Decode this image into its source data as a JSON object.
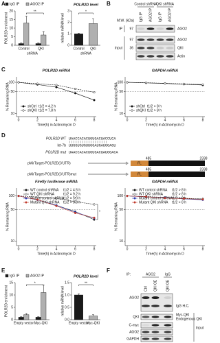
{
  "panel_labels": [
    "A",
    "B",
    "C",
    "D",
    "E",
    "F"
  ],
  "chart_data": [
    {
      "type": "bar",
      "ylabel": "POLR2D enrichment",
      "xlabel": "shRNA",
      "categories": [
        "Control",
        "QKI"
      ],
      "series": [
        {
          "name": "IgG IP",
          "color": "#1a1a1a",
          "values": [
            1,
            1
          ],
          "errors": [
            0.3,
            0.3
          ]
        },
        {
          "name": "AGO2 IP",
          "color": "#b0b0b0",
          "values": [
            13,
            6
          ],
          "errors": [
            4,
            2
          ]
        }
      ],
      "ylim": [
        0,
        20
      ],
      "yticks": [
        0,
        5,
        10,
        15,
        20
      ],
      "significance": "**"
    },
    {
      "type": "bar",
      "title": "POLR2D level",
      "ylabel": "relative mRNA level",
      "xlabel": "shRNA",
      "categories": [
        "Control",
        "QKI"
      ],
      "values": [
        1,
        1.9
      ],
      "errors": [
        0.05,
        0.4
      ],
      "colors": [
        "#1a1a1a",
        "#b0b0b0"
      ],
      "ylim": [
        0,
        3
      ],
      "yticks": [
        0,
        1,
        2,
        3
      ],
      "significance": "*"
    },
    {
      "type": "line",
      "title": "POLR2D mRNA",
      "xlabel": "Time(h) in Actinomycin D",
      "ylabel": "% Remaining RNA",
      "x": [
        0,
        2,
        4,
        6,
        8
      ],
      "xlim": [
        0,
        8
      ],
      "xticks": [
        0,
        2,
        4,
        6,
        8
      ],
      "log_y": true,
      "ylim": [
        8,
        150
      ],
      "yticks": [
        10,
        50,
        100
      ],
      "hline": 50,
      "series": [
        {
          "name": "shCtrl",
          "half_life": "t1/2 = 4.2 h",
          "color": "#111111",
          "filled": true,
          "dashed": false,
          "values": [
            100,
            85,
            70,
            45,
            27
          ]
        },
        {
          "name": "shQKI",
          "half_life": "t1/2 = 7.8 h",
          "color": "#111111",
          "filled": false,
          "dashed": true,
          "values": [
            100,
            90,
            82,
            62,
            48
          ]
        }
      ]
    },
    {
      "type": "line",
      "title": "GAPDH mRNA",
      "xlabel": "Time(h) in Actinomycin D",
      "ylabel": "% Remaining RNA",
      "x": [
        0,
        2,
        4,
        6,
        8
      ],
      "xlim": [
        0,
        8
      ],
      "xticks": [
        0,
        2,
        4,
        6,
        8
      ],
      "log_y": true,
      "ylim": [
        8,
        150
      ],
      "yticks": [
        10,
        50,
        100
      ],
      "hline": 50,
      "series": [
        {
          "name": "shCtrl",
          "half_life": "t1/2 > 8 h",
          "color": "#111111",
          "filled": true,
          "dashed": false,
          "values": [
            100,
            96,
            92,
            87,
            82
          ]
        },
        {
          "name": "shQKI",
          "half_life": "t1/2 > 8 h",
          "color": "#111111",
          "filled": false,
          "dashed": true,
          "values": [
            100,
            97,
            93,
            89,
            85
          ]
        }
      ]
    },
    {
      "type": "line",
      "title": "Firefly luciferase mRNA",
      "xlabel": "Time(h) in Actinomycin D",
      "ylabel": "% Remaining RNA",
      "x": [
        0,
        2,
        4,
        6,
        8
      ],
      "xlim": [
        0,
        8
      ],
      "xticks": [
        0,
        2,
        4,
        6,
        8
      ],
      "log_y": true,
      "ylim": [
        8,
        150
      ],
      "yticks": [
        10,
        50,
        100
      ],
      "hline": 50,
      "series": [
        {
          "name": "WT control shRNA",
          "half_life": "t1/2 = 4.5 h",
          "color": "#111111",
          "filled": true,
          "dashed": false,
          "values": [
            100,
            82,
            62,
            45,
            30
          ]
        },
        {
          "name": "WT QKI shRNA",
          "half_life": "t1/2 = 9.2 h",
          "color": "#111111",
          "filled": false,
          "dashed": true,
          "values": [
            100,
            95,
            88,
            75,
            65
          ]
        },
        {
          "name": "Mutant control shRNA",
          "half_life": "t1/2 = 5.0 h",
          "color": "#2a3fb0",
          "filled": true,
          "dashed": false,
          "values": [
            100,
            82,
            62,
            44,
            32
          ]
        },
        {
          "name": "Mutant QKI shRNA",
          "half_life": "t1/2 = 5.0 h",
          "color": "#c0392b",
          "filled": true,
          "dashed": false,
          "values": [
            100,
            83,
            60,
            42,
            33
          ]
        }
      ],
      "significance": [
        "*",
        "*"
      ]
    },
    {
      "type": "line",
      "title": "GAPDH mRNA",
      "xlabel": "Time(h) in Actinomycin D",
      "ylabel": "% Remaining RNA",
      "x": [
        0,
        2,
        4,
        6,
        8
      ],
      "xlim": [
        0,
        8
      ],
      "xticks": [
        0,
        2,
        4,
        6,
        8
      ],
      "log_y": true,
      "ylim": [
        8,
        150
      ],
      "yticks": [
        10,
        50,
        100
      ],
      "hline": 50,
      "series": [
        {
          "name": "WT control shRNA",
          "half_life": "t1/2 > 8 h",
          "color": "#111111",
          "filled": true,
          "dashed": false,
          "values": [
            100,
            96,
            91,
            87,
            83
          ]
        },
        {
          "name": "WT QKI shRNA",
          "half_life": "t1/2 > 8 h",
          "color": "#111111",
          "filled": false,
          "dashed": true,
          "values": [
            100,
            97,
            93,
            89,
            86
          ]
        },
        {
          "name": "Mutant control shRNA",
          "half_life": "t1/2 > 8 h",
          "color": "#2a3fb0",
          "filled": true,
          "dashed": false,
          "values": [
            100,
            95,
            92,
            86,
            82
          ]
        },
        {
          "name": "Mutant QKI shRNA",
          "half_life": "t1/2 > 8 h",
          "color": "#c0392b",
          "filled": true,
          "dashed": false,
          "values": [
            100,
            96,
            90,
            87,
            84
          ]
        }
      ]
    },
    {
      "type": "bar",
      "ylabel": "POLR2D enrichment",
      "categories": [
        "Empty vector",
        "Myc-QKI"
      ],
      "series": [
        {
          "name": "IgG IP",
          "color": "#1a1a1a",
          "values": [
            1,
            1
          ],
          "errors": [
            0.2,
            0.2
          ]
        },
        {
          "name": "AGO2 IP",
          "color": "#b0b0b0",
          "values": [
            2,
            11
          ],
          "errors": [
            0.5,
            3
          ]
        }
      ],
      "ylim": [
        0,
        15
      ],
      "yticks": [
        0,
        5,
        10,
        15
      ],
      "significance": "*"
    },
    {
      "type": "bar",
      "title": "POLR2D level",
      "ylabel": "relative mRNA level",
      "categories": [
        "Empty vector",
        "Myc-QKI"
      ],
      "values": [
        1,
        0.15
      ],
      "errors": [
        0.05,
        0.05
      ],
      "colors": [
        "#1a1a1a",
        "#b0b0b0"
      ],
      "ylim": [
        0,
        1.5
      ],
      "yticks": [
        {
          "value": 0,
          "label": "0.0"
        },
        0.5,
        {
          "value": 1,
          "label": "1.0"
        },
        1.5
      ],
      "significance": "**"
    }
  ],
  "blot_b": {
    "mw_header": "M.W. (kDa)",
    "groups": [
      "Control shRNA",
      "QKI shRNA"
    ],
    "lanes": [
      "IgG IP",
      "AGO2 IP",
      "IgG IP",
      "AGO2 IP"
    ],
    "rows": [
      "AGO2",
      "AGO2",
      "QKI",
      "Actin"
    ],
    "mw": [
      97,
      97,
      36
    ],
    "sections": [
      "IP",
      "Input"
    ]
  },
  "diagram": {
    "wt_label": "POLR2D WT",
    "wt_seq": "UAACCACACUGUGACUACCUCA",
    "mir_label": "let-7b",
    "mir_seq": "UUGGUGUGUUGGAUGAUGGAGU",
    "mut_label": "POLR2D mut",
    "mut_seq": "UAACCACACUGUGACUAUGGACA",
    "constructs": [
      {
        "name": "pMirTarget-POLR2D(3'UTR)",
        "fl": "FL",
        "utr": "POLR2D(3'UTR)WT",
        "start": 485,
        "end": 2338
      },
      {
        "name": "pMirTarget-POLR2D(3'UTR)mut",
        "fl": "FL",
        "utr": "POLR2D(3'UTR)mut",
        "start": 485,
        "end": 2338
      }
    ]
  },
  "blot_f": {
    "ip_label": "IP:",
    "groups": [
      "AGO2",
      "IgG"
    ],
    "lanes": [
      "Ctrl",
      "QKI OE",
      "QKI OE"
    ],
    "rows": [
      "AGO2",
      "QKI",
      "C-myc",
      "AGO2",
      "GAPDH"
    ],
    "right_labels": [
      "IgG H.C.",
      "Myc-QKI",
      "Endogenous QKI"
    ],
    "section": "Input"
  }
}
